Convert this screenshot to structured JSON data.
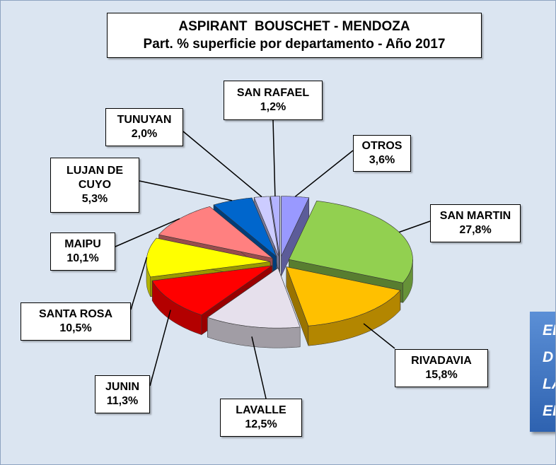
{
  "chart_data": {
    "type": "pie",
    "title": "ASPIRANT  BOUSCHET - MENDOZA",
    "subtitle": "Part. % superficie por departamento - Año 2017",
    "categories": [
      "OTROS",
      "SAN MARTIN",
      "RIVADAVIA",
      "LAVALLE",
      "JUNIN",
      "SANTA ROSA",
      "MAIPU",
      "LUJAN DE CUYO",
      "TUNUYAN",
      "SAN RAFAEL"
    ],
    "values": [
      3.6,
      27.8,
      15.8,
      12.5,
      11.3,
      10.5,
      10.1,
      5.3,
      2.0,
      1.2
    ],
    "value_labels": [
      "3,6%",
      "27,8%",
      "15,8%",
      "12,5%",
      "11,3%",
      "10,5%",
      "10,1%",
      "5,3%",
      "2,0%",
      "1,2%"
    ],
    "colors": [
      "#9999ff",
      "#92d050",
      "#ffc000",
      "#e6e0ec",
      "#ff0000",
      "#ffff00",
      "#ff8080",
      "#0066cc",
      "#ccccff",
      "#b3b3ff"
    ],
    "annotation_lines": [
      "EL",
      "D",
      "LA",
      "EL"
    ]
  }
}
